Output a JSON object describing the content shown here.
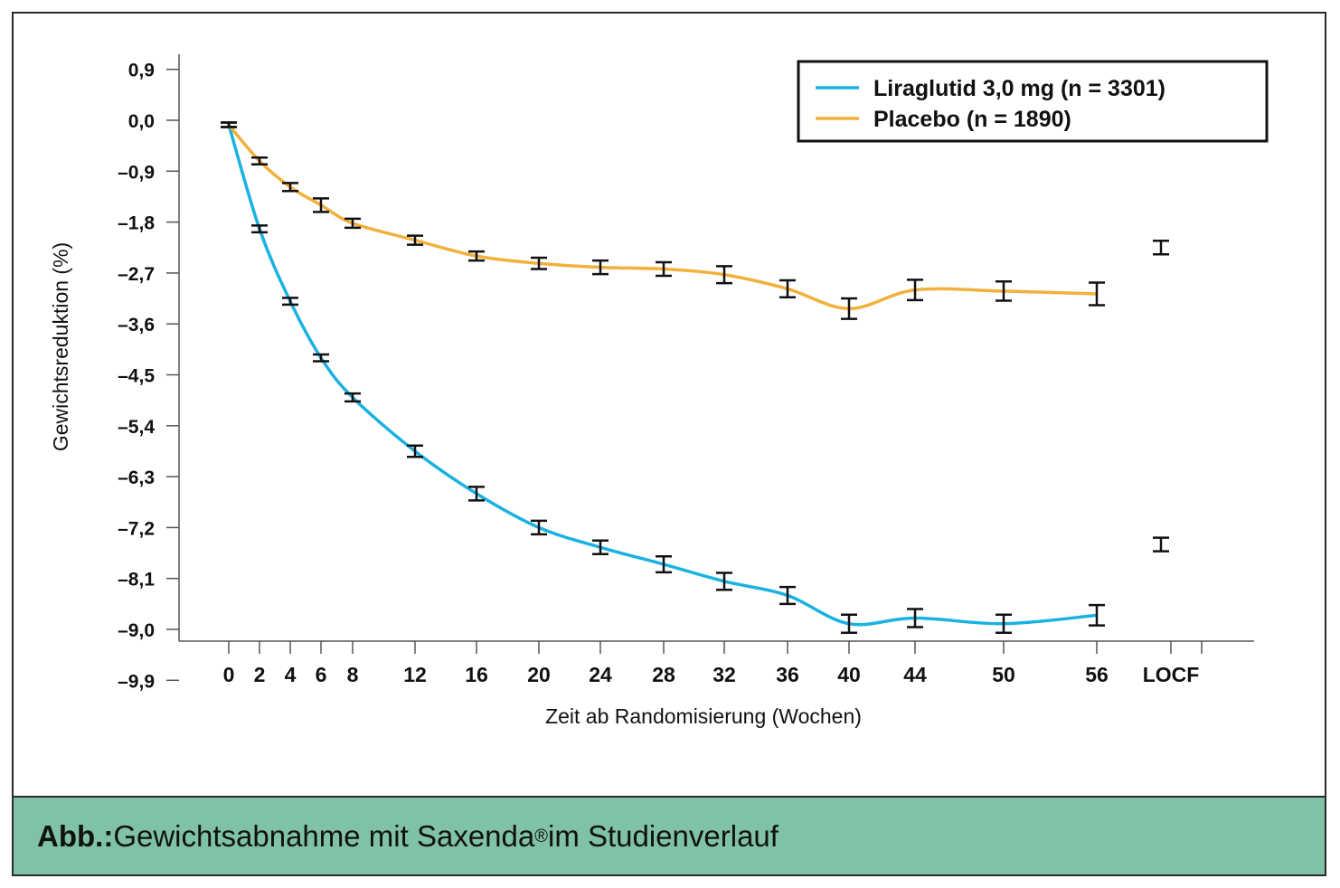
{
  "chart_data": {
    "type": "line",
    "title": "",
    "xlabel": "Zeit ab Randomisierung (Wochen)",
    "ylabel": "Gewichtsreduktion (%)",
    "ylim": [
      -10.3,
      1.4
    ],
    "yticks": [
      "0,9",
      "0,0",
      "–0,9",
      "–1,8",
      "–2,7",
      "–3,6",
      "–4,5",
      "–5,4",
      "–6,3",
      "–7,2",
      "–8,1",
      "–9,0",
      "–9,9"
    ],
    "ytick_values": [
      0.9,
      0.0,
      -0.9,
      -1.8,
      -2.7,
      -3.6,
      -4.5,
      -5.4,
      -6.3,
      -7.2,
      -8.1,
      -9.0,
      -9.9
    ],
    "xticks": [
      "0",
      "2",
      "4",
      "6",
      "8",
      "12",
      "16",
      "20",
      "24",
      "28",
      "32",
      "36",
      "40",
      "44",
      "50",
      "56",
      "LOCF"
    ],
    "xtick_values": [
      0,
      2,
      4,
      6,
      8,
      12,
      16,
      20,
      24,
      28,
      32,
      36,
      40,
      44,
      50,
      56,
      60
    ],
    "legend_position": "top-right",
    "grid": false,
    "series": [
      {
        "name": "Liraglutid 3,0 mg (n = 3301)",
        "color": "#1ab2e0",
        "x": [
          0,
          2,
          4,
          6,
          8,
          12,
          16,
          20,
          24,
          28,
          32,
          36,
          40,
          44,
          50,
          56
        ],
        "values": [
          -0.08,
          -1.92,
          -3.2,
          -4.2,
          -4.9,
          -5.85,
          -6.6,
          -7.2,
          -7.55,
          -7.85,
          -8.15,
          -8.4,
          -8.9,
          -8.8,
          -8.9,
          -8.75
        ],
        "errors": [
          0.04,
          0.06,
          0.06,
          0.06,
          0.07,
          0.1,
          0.12,
          0.12,
          0.12,
          0.14,
          0.15,
          0.15,
          0.16,
          0.16,
          0.16,
          0.18
        ],
        "locf": -7.5,
        "locf_error": 0.12
      },
      {
        "name": "Placebo (n = 1890)",
        "color": "#f1b13c",
        "x": [
          0,
          2,
          4,
          6,
          8,
          12,
          16,
          20,
          24,
          28,
          32,
          36,
          40,
          44,
          50,
          56
        ],
        "values": [
          -0.08,
          -0.72,
          -1.18,
          -1.5,
          -1.82,
          -2.12,
          -2.4,
          -2.53,
          -2.6,
          -2.63,
          -2.73,
          -2.98,
          -3.33,
          -3.0,
          -3.02,
          -3.07
        ],
        "errors": [
          0.04,
          0.06,
          0.07,
          0.12,
          0.08,
          0.08,
          0.08,
          0.1,
          0.12,
          0.12,
          0.15,
          0.15,
          0.18,
          0.18,
          0.17,
          0.2
        ],
        "locf": -2.25,
        "locf_error": 0.12
      }
    ]
  },
  "caption": {
    "prefix": "Abb.:",
    "text": " Gewichtsabnahme mit Saxenda",
    "mark": "®",
    "suffix": " im Studienverlauf"
  }
}
